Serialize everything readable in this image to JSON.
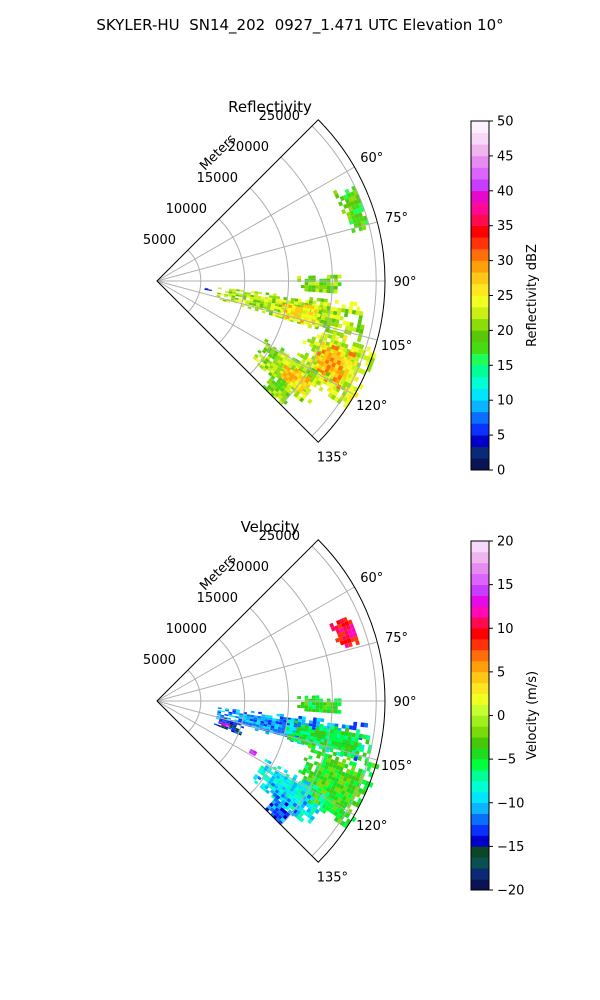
{
  "figure_title": "SKYLER-HU  SN14_202  0927_1.471 UTC Elevation 10°",
  "chart_data": [
    {
      "type": "heatmap",
      "projection": "polar-sector",
      "title": "Reflectivity",
      "radial_axis_label": "Meters",
      "radial_ticks": [
        "5000",
        "10000",
        "15000",
        "20000",
        "25000"
      ],
      "radial_tick_values": [
        5000,
        10000,
        15000,
        20000,
        25000
      ],
      "radial_max": 25000,
      "azimuth_range": [
        45,
        135
      ],
      "azimuth_ticks": [
        "60°",
        "75°",
        "90°",
        "105°",
        "120°",
        "135°"
      ],
      "azimuth_tick_values": [
        60,
        75,
        90,
        105,
        120,
        135
      ],
      "colorbar": {
        "label": "Reflectivity dBZ",
        "range": [
          0,
          50
        ],
        "ticks": [
          "0",
          "5",
          "10",
          "15",
          "20",
          "25",
          "30",
          "35",
          "40",
          "45",
          "50"
        ],
        "tick_values": [
          0,
          5,
          10,
          15,
          20,
          25,
          30,
          35,
          40,
          45,
          50
        ],
        "colors": [
          "#0a1454",
          "#0a2a78",
          "#0000c8",
          "#0a32ff",
          "#0a6eff",
          "#0ab4ff",
          "#00e6ff",
          "#00ffd2",
          "#00ff96",
          "#1eff5a",
          "#46dc14",
          "#5ac80a",
          "#8cdc0a",
          "#c8f014",
          "#f0ff1e",
          "#ffe61e",
          "#ffc814",
          "#ffa00a",
          "#ff6e0a",
          "#ff320a",
          "#ff0000",
          "#ff0a50",
          "#ff0a96",
          "#e60ac8",
          "#c83cff",
          "#dc64ff",
          "#e68cf0",
          "#f0b4f0",
          "#f8d8f8",
          "#fff0ff"
        ]
      },
      "echoes": [
        {
          "az_start": 63,
          "az_end": 76,
          "r_start": 22500,
          "r_end": 25000,
          "value": 18
        },
        {
          "az_start": 88,
          "az_end": 94,
          "r_start": 16000,
          "r_end": 21000,
          "value": 20
        },
        {
          "az_start": 96,
          "az_end": 106,
          "r_start": 7000,
          "r_end": 24000,
          "value": 22
        },
        {
          "az_start": 99,
          "az_end": 106,
          "r_start": 14000,
          "r_end": 19000,
          "value": 26
        },
        {
          "az_start": 106,
          "az_end": 124,
          "r_start": 18000,
          "r_end": 26000,
          "value": 23
        },
        {
          "az_start": 110,
          "az_end": 120,
          "r_start": 20000,
          "r_end": 24000,
          "value": 28
        },
        {
          "az_start": 118,
          "az_end": 130,
          "r_start": 14000,
          "r_end": 22000,
          "value": 21
        },
        {
          "az_start": 122,
          "az_end": 128,
          "r_start": 17000,
          "r_end": 21000,
          "value": 27
        },
        {
          "az_start": 128,
          "az_end": 135,
          "r_start": 17000,
          "r_end": 20000,
          "value": 20
        },
        {
          "az_start": 98,
          "az_end": 100,
          "r_start": 5500,
          "r_end": 6500,
          "value": 5
        }
      ]
    },
    {
      "type": "heatmap",
      "projection": "polar-sector",
      "title": "Velocity",
      "radial_axis_label": "Meters",
      "radial_ticks": [
        "5000",
        "10000",
        "15000",
        "20000",
        "25000"
      ],
      "radial_tick_values": [
        5000,
        10000,
        15000,
        20000,
        25000
      ],
      "radial_max": 25000,
      "azimuth_range": [
        45,
        135
      ],
      "azimuth_ticks": [
        "60°",
        "75°",
        "90°",
        "105°",
        "120°",
        "135°"
      ],
      "azimuth_tick_values": [
        60,
        75,
        90,
        105,
        120,
        135
      ],
      "colorbar": {
        "label": "Velocity (m/s)",
        "range": [
          -20,
          20
        ],
        "ticks": [
          "−20",
          "−15",
          "−10",
          "−5",
          "0",
          "5",
          "10",
          "15",
          "20"
        ],
        "tick_values": [
          -20,
          -15,
          -10,
          -5,
          0,
          5,
          10,
          15,
          20
        ],
        "colors": [
          "#0a1454",
          "#0a2a78",
          "#0a5050",
          "#0a4628",
          "#0000c8",
          "#0a32ff",
          "#0a6eff",
          "#0ab4ff",
          "#00e6ff",
          "#00ffd2",
          "#00ff96",
          "#00ff3c",
          "#1edc1e",
          "#46c80a",
          "#78dc0a",
          "#a0f01e",
          "#c8ff32",
          "#f0ff1e",
          "#ffe61e",
          "#ffc814",
          "#ffa00a",
          "#ff6e0a",
          "#ff320a",
          "#ff0000",
          "#ff0a50",
          "#ff0ab4",
          "#e60ae6",
          "#c83cff",
          "#dc64ff",
          "#e68cf0",
          "#f0b4f0",
          "#f8d8f8"
        ]
      },
      "echoes": [
        {
          "az_start": 66,
          "az_end": 74,
          "r_start": 21500,
          "r_end": 24000,
          "value": 10
        },
        {
          "az_start": 88,
          "az_end": 94,
          "r_start": 16000,
          "r_end": 21000,
          "value": -4
        },
        {
          "az_start": 96,
          "az_end": 106,
          "r_start": 7000,
          "r_end": 24000,
          "value": -11
        },
        {
          "az_start": 98,
          "az_end": 106,
          "r_start": 15000,
          "r_end": 25000,
          "value": -5
        },
        {
          "az_start": 104,
          "az_end": 112,
          "r_start": 7000,
          "r_end": 10000,
          "value": -14
        },
        {
          "az_start": 106,
          "az_end": 124,
          "r_start": 18000,
          "r_end": 26000,
          "value": -4
        },
        {
          "az_start": 118,
          "az_end": 130,
          "r_start": 14000,
          "r_end": 22000,
          "value": -9
        },
        {
          "az_start": 128,
          "az_end": 135,
          "r_start": 17000,
          "r_end": 20000,
          "value": -12
        },
        {
          "az_start": 108,
          "az_end": 110,
          "r_start": 7500,
          "r_end": 8500,
          "value": 15
        },
        {
          "az_start": 117,
          "az_end": 119,
          "r_start": 12000,
          "r_end": 13000,
          "value": 15
        }
      ]
    }
  ]
}
